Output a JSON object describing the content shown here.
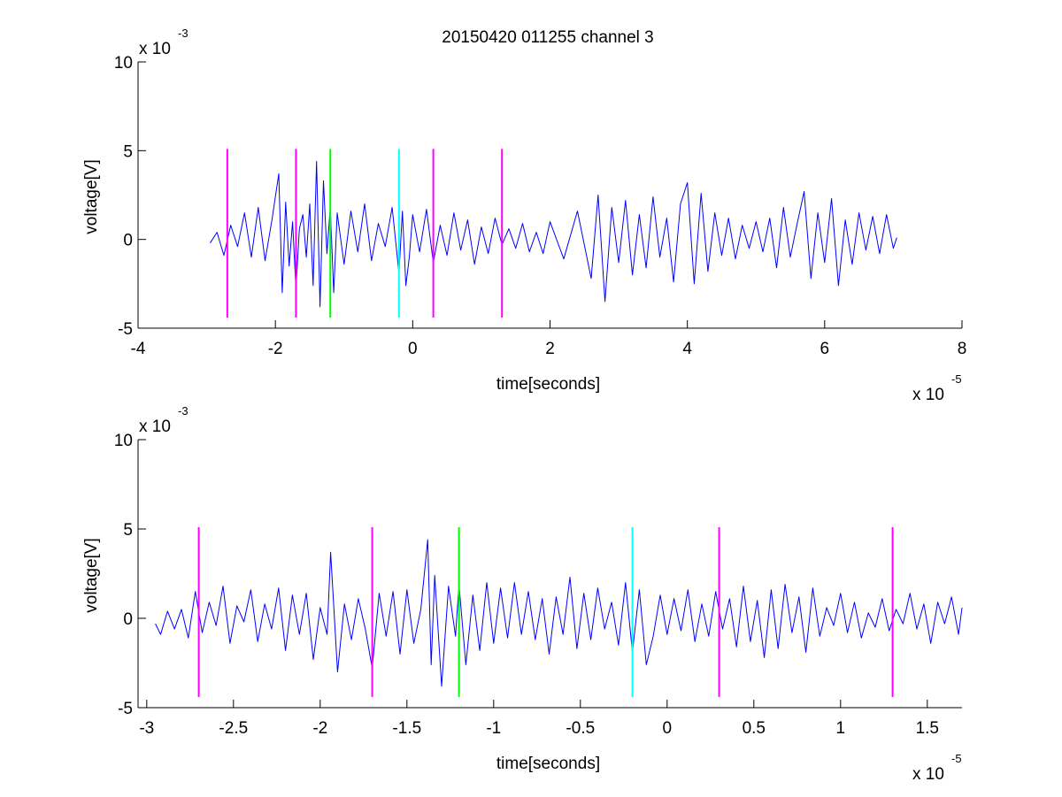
{
  "figure": {
    "title": "20150420 011255 channel 3"
  },
  "chart_data": [
    {
      "type": "line",
      "panel": "top",
      "title": "20150420 011255 channel 3",
      "xlabel": "time[seconds]",
      "ylabel": "voltage[V]",
      "xlim": [
        -4,
        8
      ],
      "ylim": [
        -5,
        10
      ],
      "x_multiplier_label": "x 10",
      "x_multiplier_exp": "-5",
      "y_multiplier_label": "x 10",
      "y_multiplier_exp": "-3",
      "xticks": [
        -4,
        -2,
        0,
        2,
        4,
        6,
        8
      ],
      "xtick_labels": [
        "-4",
        "-2",
        "0",
        "2",
        "4",
        "6",
        "8"
      ],
      "yticks": [
        -5,
        0,
        5,
        10
      ],
      "ytick_labels": [
        "-5",
        "0",
        "5",
        "10"
      ],
      "grid": false,
      "series": [
        {
          "color": "#0000ff",
          "x": [
            -2.95,
            -2.85,
            -2.75,
            -2.65,
            -2.55,
            -2.45,
            -2.35,
            -2.25,
            -2.15,
            -2.05,
            -1.95,
            -1.9,
            -1.85,
            -1.8,
            -1.75,
            -1.7,
            -1.65,
            -1.6,
            -1.55,
            -1.5,
            -1.45,
            -1.4,
            -1.35,
            -1.3,
            -1.25,
            -1.2,
            -1.15,
            -1.1,
            -1.0,
            -0.9,
            -0.8,
            -0.7,
            -0.6,
            -0.5,
            -0.4,
            -0.3,
            -0.2,
            -0.15,
            -0.1,
            -0.05,
            0.0,
            0.1,
            0.2,
            0.3,
            0.4,
            0.5,
            0.6,
            0.7,
            0.8,
            0.9,
            1.0,
            1.1,
            1.2,
            1.3,
            1.4,
            1.5,
            1.6,
            1.7,
            1.8,
            1.9,
            2.0,
            2.2,
            2.4,
            2.6,
            2.7,
            2.8,
            2.9,
            3.0,
            3.1,
            3.2,
            3.3,
            3.4,
            3.5,
            3.6,
            3.7,
            3.8,
            3.9,
            4.0,
            4.1,
            4.2,
            4.3,
            4.4,
            4.5,
            4.6,
            4.7,
            4.8,
            4.9,
            5.0,
            5.1,
            5.2,
            5.3,
            5.4,
            5.5,
            5.6,
            5.7,
            5.8,
            5.9,
            6.0,
            6.1,
            6.2,
            6.3,
            6.4,
            6.5,
            6.6,
            6.7,
            6.8,
            6.9,
            7.0,
            7.05
          ],
          "y": [
            -0.2,
            0.4,
            -0.9,
            0.8,
            -0.4,
            1.5,
            -1.0,
            1.8,
            -1.2,
            1.1,
            3.7,
            -3.0,
            2.1,
            -1.5,
            1.0,
            -2.8,
            0.6,
            1.4,
            -1.0,
            2.0,
            -2.6,
            4.4,
            -3.8,
            3.3,
            -0.8,
            1.8,
            -3.0,
            1.5,
            -1.4,
            1.6,
            -0.7,
            2.0,
            -1.2,
            0.9,
            -0.4,
            1.8,
            -1.9,
            1.6,
            -2.6,
            -1.0,
            1.4,
            -0.7,
            1.7,
            -1.3,
            0.8,
            -0.9,
            1.5,
            -0.6,
            1.1,
            -1.4,
            0.7,
            -0.8,
            1.2,
            -0.3,
            0.6,
            -0.5,
            0.9,
            -0.7,
            0.4,
            -0.8,
            1.0,
            -1.1,
            1.6,
            -2.2,
            2.5,
            -3.5,
            1.8,
            -1.3,
            2.2,
            -2.0,
            1.4,
            -1.6,
            2.4,
            -1.0,
            1.2,
            -2.4,
            2.0,
            3.2,
            -2.5,
            2.6,
            -1.8,
            1.5,
            -0.9,
            1.2,
            -1.1,
            0.8,
            -0.5,
            1.0,
            -0.7,
            1.2,
            -1.6,
            1.8,
            -1.0,
            0.9,
            2.7,
            -2.2,
            1.5,
            -1.3,
            2.3,
            -2.6,
            1.1,
            -1.4,
            1.5,
            -0.6,
            1.3,
            -0.8,
            1.4,
            -0.5,
            0.1
          ]
        }
      ],
      "markers": [
        {
          "x": -2.7,
          "color": "#ff00ff"
        },
        {
          "x": -1.7,
          "color": "#ff00ff"
        },
        {
          "x": -1.2,
          "color": "#00ff00"
        },
        {
          "x": -0.2,
          "color": "#00ffff"
        },
        {
          "x": 0.3,
          "color": "#ff00ff"
        },
        {
          "x": 1.3,
          "color": "#ff00ff"
        }
      ],
      "marker_ylim": [
        -4.4,
        5.1
      ]
    },
    {
      "type": "line",
      "panel": "bottom",
      "xlabel": "time[seconds]",
      "ylabel": "voltage[V]",
      "xlim": [
        -3.05,
        1.7
      ],
      "ylim": [
        -5,
        10
      ],
      "x_multiplier_label": "x 10",
      "x_multiplier_exp": "-5",
      "y_multiplier_label": "x 10",
      "y_multiplier_exp": "-3",
      "xticks": [
        -3,
        -2.5,
        -2,
        -1.5,
        -1,
        -0.5,
        0,
        0.5,
        1,
        1.5
      ],
      "xtick_labels": [
        "-3",
        "-2.5",
        "-2",
        "-1.5",
        "-1",
        "-0.5",
        "0",
        "0.5",
        "1",
        "1.5"
      ],
      "yticks": [
        -5,
        0,
        5,
        10
      ],
      "ytick_labels": [
        "-5",
        "0",
        "5",
        "10"
      ],
      "grid": false,
      "series": [
        {
          "color": "#0000ff",
          "x": [
            -2.95,
            -2.92,
            -2.88,
            -2.84,
            -2.8,
            -2.76,
            -2.72,
            -2.68,
            -2.64,
            -2.6,
            -2.56,
            -2.52,
            -2.48,
            -2.44,
            -2.4,
            -2.36,
            -2.32,
            -2.28,
            -2.24,
            -2.2,
            -2.16,
            -2.12,
            -2.08,
            -2.04,
            -2.0,
            -1.96,
            -1.94,
            -1.9,
            -1.86,
            -1.82,
            -1.78,
            -1.74,
            -1.7,
            -1.66,
            -1.62,
            -1.58,
            -1.54,
            -1.5,
            -1.46,
            -1.42,
            -1.38,
            -1.36,
            -1.34,
            -1.3,
            -1.26,
            -1.22,
            -1.2,
            -1.16,
            -1.12,
            -1.08,
            -1.04,
            -1.0,
            -0.96,
            -0.92,
            -0.88,
            -0.84,
            -0.8,
            -0.76,
            -0.72,
            -0.68,
            -0.64,
            -0.6,
            -0.56,
            -0.52,
            -0.48,
            -0.44,
            -0.4,
            -0.36,
            -0.32,
            -0.28,
            -0.24,
            -0.2,
            -0.16,
            -0.12,
            -0.08,
            -0.04,
            0.0,
            0.04,
            0.08,
            0.12,
            0.16,
            0.2,
            0.24,
            0.28,
            0.32,
            0.36,
            0.4,
            0.44,
            0.48,
            0.52,
            0.56,
            0.6,
            0.64,
            0.68,
            0.72,
            0.76,
            0.8,
            0.84,
            0.88,
            0.92,
            0.96,
            1.0,
            1.04,
            1.08,
            1.12,
            1.16,
            1.2,
            1.24,
            1.28,
            1.32,
            1.36,
            1.4,
            1.44,
            1.48,
            1.52,
            1.56,
            1.6,
            1.64,
            1.68,
            1.7
          ],
          "y": [
            -0.3,
            -0.9,
            0.4,
            -0.6,
            0.5,
            -1.1,
            1.5,
            -0.8,
            0.9,
            -0.4,
            1.8,
            -1.4,
            0.7,
            -0.2,
            1.6,
            -1.3,
            0.8,
            -0.6,
            1.7,
            -1.8,
            1.3,
            -0.9,
            1.4,
            -2.3,
            0.6,
            -0.9,
            3.7,
            -3.0,
            0.8,
            -1.2,
            1.1,
            -0.6,
            -2.8,
            1.4,
            -1.0,
            1.5,
            -2.0,
            1.6,
            -1.4,
            0.5,
            4.4,
            -2.6,
            2.4,
            -3.8,
            1.8,
            -1.0,
            1.9,
            -2.6,
            1.3,
            -1.8,
            2.0,
            -1.4,
            1.7,
            -1.1,
            2.0,
            -0.9,
            1.5,
            -1.2,
            1.1,
            -2.0,
            1.2,
            -0.9,
            2.3,
            -1.7,
            1.4,
            -1.2,
            1.7,
            -0.6,
            0.9,
            -1.5,
            2.0,
            -1.9,
            1.6,
            -2.6,
            -1.0,
            1.3,
            -0.9,
            1.1,
            -0.7,
            1.6,
            -1.3,
            0.8,
            -1.0,
            1.5,
            -0.6,
            1.1,
            -1.6,
            1.8,
            -1.3,
            1.0,
            -2.2,
            1.6,
            -1.7,
            1.9,
            -0.8,
            1.2,
            -1.9,
            1.7,
            -1.0,
            0.6,
            -0.4,
            1.4,
            -0.8,
            0.9,
            -1.1,
            0.3,
            -0.5,
            1.1,
            -0.7,
            0.5,
            -0.3,
            1.4,
            -0.6,
            0.8,
            -1.4,
            0.9,
            -0.3,
            1.2,
            -0.9,
            0.6
          ]
        }
      ],
      "markers": [
        {
          "x": -2.7,
          "color": "#ff00ff"
        },
        {
          "x": -1.7,
          "color": "#ff00ff"
        },
        {
          "x": -1.2,
          "color": "#00ff00"
        },
        {
          "x": -0.2,
          "color": "#00ffff"
        },
        {
          "x": 0.3,
          "color": "#ff00ff"
        },
        {
          "x": 1.3,
          "color": "#ff00ff"
        }
      ],
      "marker_ylim": [
        -4.4,
        5.1
      ]
    }
  ]
}
